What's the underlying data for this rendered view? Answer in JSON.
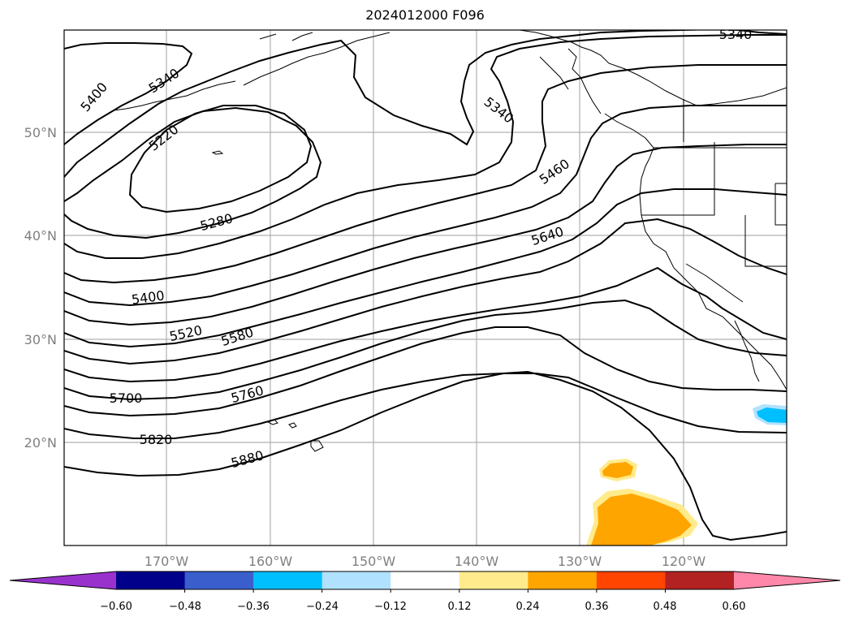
{
  "title": "2024012000 F096",
  "lat_labels": [
    "50°N",
    "40°N",
    "30°N",
    "20°N"
  ],
  "lon_labels": [
    "170°W",
    "160°W",
    "150°W",
    "140°W",
    "130°W",
    "120°W"
  ],
  "contour_labels": [
    "5400",
    "5340",
    "5220",
    "5340",
    "5340",
    "5460",
    "5280",
    "5640",
    "5400",
    "5520",
    "5580",
    "5700",
    "5760",
    "5820",
    "5880"
  ],
  "colorbar": {
    "ticks": [
      "−0.60",
      "−0.48",
      "−0.36",
      "−0.24",
      "−0.12",
      "0.12",
      "0.24",
      "0.36",
      "0.48",
      "0.60"
    ],
    "colors": [
      "#9932cc",
      "#00008b",
      "#3a5fcd",
      "#00bfff",
      "#b0e2ff",
      "#ffffff",
      "#ffeb8c",
      "#ffa500",
      "#ff4500",
      "#b22222",
      "#ff88aa"
    ]
  }
}
